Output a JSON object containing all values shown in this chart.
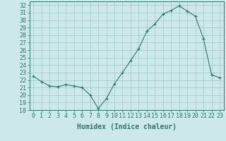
{
  "x": [
    0,
    1,
    2,
    3,
    4,
    5,
    6,
    7,
    8,
    9,
    10,
    11,
    12,
    13,
    14,
    15,
    16,
    17,
    18,
    19,
    20,
    21,
    22,
    23
  ],
  "y": [
    22.5,
    21.8,
    21.2,
    21.1,
    21.4,
    21.2,
    21.0,
    20.0,
    18.2,
    19.5,
    21.5,
    23.0,
    24.6,
    26.2,
    28.5,
    29.5,
    30.8,
    31.3,
    31.9,
    31.2,
    30.5,
    27.5,
    22.7,
    22.3
  ],
  "line_color": "#2a7a6a",
  "marker": "+",
  "bg_color": "#cce8e8",
  "grid_color": "#9ac8c8",
  "tick_color": "#2a7a6a",
  "xlabel": "Humidex (Indice chaleur)",
  "ylim": [
    18,
    32.5
  ],
  "xlim": [
    -0.5,
    23.5
  ],
  "yticks": [
    18,
    19,
    20,
    21,
    22,
    23,
    24,
    25,
    26,
    27,
    28,
    29,
    30,
    31,
    32
  ],
  "xticks": [
    0,
    1,
    2,
    3,
    4,
    5,
    6,
    7,
    8,
    9,
    10,
    11,
    12,
    13,
    14,
    15,
    16,
    17,
    18,
    19,
    20,
    21,
    22,
    23
  ],
  "xlabel_fontsize": 7,
  "tick_fontsize": 6
}
